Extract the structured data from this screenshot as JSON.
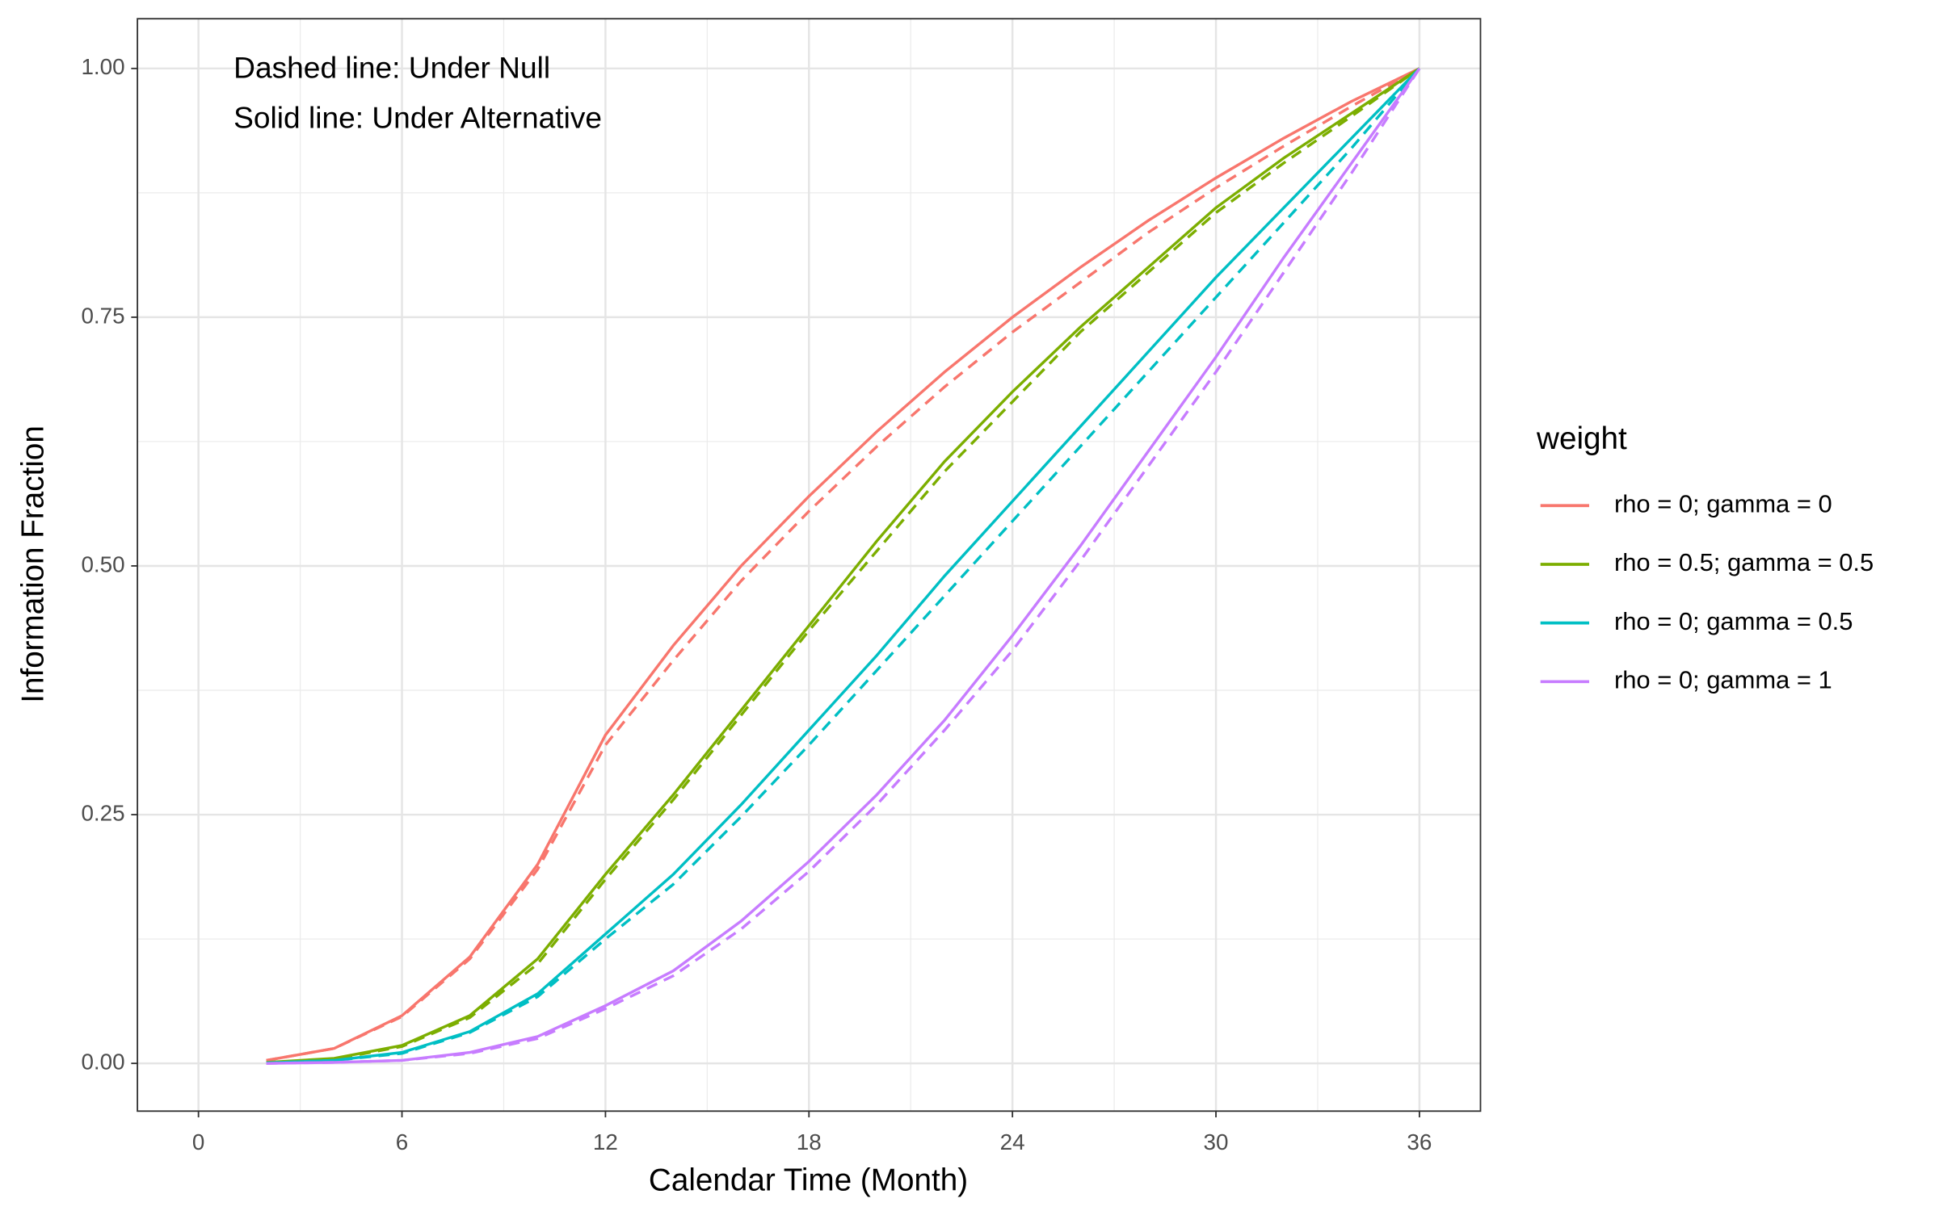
{
  "chart_data": {
    "type": "line",
    "annotations": [
      "Dashed line: Under Null",
      "Solid line: Under Alternative"
    ],
    "x_label": "Calendar Time (Month)",
    "y_label": "Information Fraction",
    "legend_title": "weight",
    "legend_position": "right",
    "grid": true,
    "x": [
      2,
      4,
      6,
      8,
      10,
      12,
      14,
      16,
      18,
      20,
      22,
      24,
      26,
      28,
      30,
      32,
      34,
      36
    ],
    "series": [
      {
        "name": "rho = 0; gamma = 0",
        "color": "#f8766d",
        "values": [
          0.003,
          0.015,
          0.048,
          0.107,
          0.2,
          0.33,
          0.42,
          0.5,
          0.57,
          0.635,
          0.695,
          0.75,
          0.8,
          0.847,
          0.89,
          0.93,
          0.967,
          1
        ],
        "values_null": [
          0.003,
          0.015,
          0.047,
          0.105,
          0.195,
          0.32,
          0.405,
          0.485,
          0.555,
          0.62,
          0.68,
          0.735,
          0.785,
          0.835,
          0.88,
          0.922,
          0.962,
          1
        ]
      },
      {
        "name": "rho = 0.5; gamma = 0.5",
        "color": "#7cae00",
        "values": [
          0.001,
          0.005,
          0.018,
          0.048,
          0.105,
          0.19,
          0.27,
          0.355,
          0.44,
          0.525,
          0.605,
          0.675,
          0.74,
          0.8,
          0.86,
          0.91,
          0.955,
          1
        ],
        "values_null": [
          0.001,
          0.004,
          0.017,
          0.046,
          0.1,
          0.185,
          0.265,
          0.35,
          0.435,
          0.515,
          0.595,
          0.665,
          0.735,
          0.795,
          0.855,
          0.905,
          0.952,
          1
        ]
      },
      {
        "name": "rho = 0; gamma = 0.5",
        "color": "#00bfc4",
        "values": [
          0.0005,
          0.003,
          0.011,
          0.032,
          0.07,
          0.13,
          0.19,
          0.26,
          0.335,
          0.41,
          0.49,
          0.565,
          0.64,
          0.715,
          0.79,
          0.86,
          0.93,
          1
        ],
        "values_null": [
          0.0005,
          0.003,
          0.01,
          0.031,
          0.067,
          0.125,
          0.18,
          0.248,
          0.32,
          0.395,
          0.47,
          0.545,
          0.62,
          0.695,
          0.77,
          0.845,
          0.92,
          1
        ]
      },
      {
        "name": "rho = 0; gamma = 1",
        "color": "#c77cff",
        "values": [
          0,
          0.001,
          0.003,
          0.011,
          0.027,
          0.058,
          0.093,
          0.143,
          0.203,
          0.27,
          0.345,
          0.43,
          0.52,
          0.615,
          0.71,
          0.81,
          0.905,
          1
        ],
        "values_null": [
          0,
          0.001,
          0.003,
          0.01,
          0.025,
          0.055,
          0.088,
          0.135,
          0.193,
          0.26,
          0.335,
          0.415,
          0.505,
          0.6,
          0.695,
          0.795,
          0.895,
          1
        ]
      }
    ],
    "xlim": [
      -1.8,
      37.8
    ],
    "ylim": [
      -0.048,
      1.05
    ],
    "xticks": [
      0,
      6,
      12,
      18,
      24,
      30,
      36
    ],
    "x_minor_ticks": [
      3,
      9,
      15,
      21,
      27,
      33
    ],
    "yticks": [
      {
        "value": 0,
        "label": "0.00"
      },
      {
        "value": 0.25,
        "label": "0.25"
      },
      {
        "value": 0.5,
        "label": "0.50"
      },
      {
        "value": 0.75,
        "label": "0.75"
      },
      {
        "value": 1,
        "label": "1.00"
      }
    ],
    "y_minor_ticks": [
      0.125,
      0.375,
      0.625,
      0.875
    ]
  }
}
